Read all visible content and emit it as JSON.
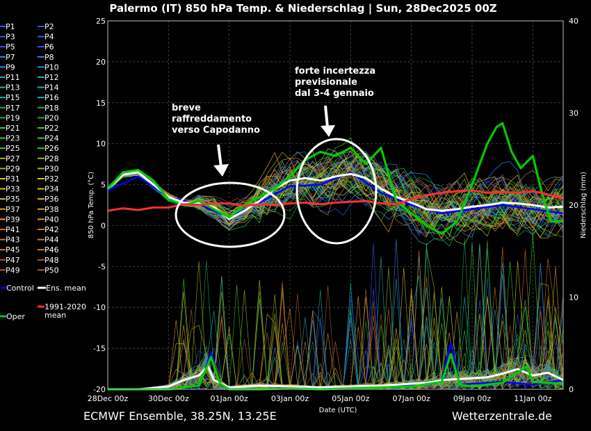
{
  "header": {
    "title": "Palermo  (IT)  850 hPa Temp. & Niederschlag | Sun, 28Dec2025 00Z"
  },
  "footer": {
    "left": "ECMWF Ensemble, 38.25N, 13.25E",
    "right": "Wetterzentrale.de"
  },
  "annotations": [
    {
      "lines": [
        "breve",
        "raffreddamento",
        "verso Capodanno"
      ]
    },
    {
      "lines": [
        "forte incertezza",
        "previsionale",
        "dal 3-4 gennaio"
      ]
    }
  ],
  "legend": {
    "members": [
      "P1",
      "P2",
      "P3",
      "P4",
      "P5",
      "P6",
      "P7",
      "P8",
      "P9",
      "P10",
      "P11",
      "P12",
      "P13",
      "P14",
      "P15",
      "P16",
      "P17",
      "P18",
      "P19",
      "P20",
      "P21",
      "P22",
      "P23",
      "P24",
      "P25",
      "P26",
      "P27",
      "P28",
      "P29",
      "P30",
      "P31",
      "P32",
      "P33",
      "P34",
      "P35",
      "P36",
      "P37",
      "P38",
      "P39",
      "P40",
      "P41",
      "P42",
      "P43",
      "P44",
      "P45",
      "P46",
      "P47",
      "P48",
      "P49",
      "P50"
    ],
    "control": "Control",
    "mean": "Ens. mean",
    "climate": [
      "1991-2020",
      "mean"
    ],
    "oper": "Oper"
  },
  "colors": {
    "member_palette": [
      "#3355ff",
      "#2b8cff",
      "#20b2aa",
      "#1fae4a",
      "#33cc33",
      "#90c020",
      "#d8c020",
      "#e0a030",
      "#d07a30",
      "#b05a30"
    ],
    "control": "#0000ff",
    "mean": "#ffffff",
    "climate": "#ff3030",
    "oper": "#00cc00",
    "grid": "#555555"
  },
  "chart_data": {
    "type": "line",
    "title": "Palermo  (IT)  850 hPa Temp. & Niederschlag | Sun, 28Dec2025 00Z",
    "xlabel": "Date (UTC)",
    "ylabel": "850 hPa Temp. (°C)",
    "y2label": "Niederschlag (mm)",
    "xlim": [
      0,
      15
    ],
    "ylim": [
      -20,
      25
    ],
    "y2lim": [
      0,
      40
    ],
    "x_ticks": [
      {
        "x": 0,
        "label": "28Dec 00z"
      },
      {
        "x": 2,
        "label": "30Dec 00z"
      },
      {
        "x": 4,
        "label": "01Jan 00z"
      },
      {
        "x": 6,
        "label": "03Jan 00z"
      },
      {
        "x": 8,
        "label": "05Jan 00z"
      },
      {
        "x": 10,
        "label": "07Jan 00z"
      },
      {
        "x": 12,
        "label": "09Jan 00z"
      },
      {
        "x": 14,
        "label": "11Jan 00z"
      }
    ],
    "y_ticks": [
      25,
      20,
      15,
      10,
      5,
      0,
      -5,
      -10,
      -15,
      -20
    ],
    "y2_ticks": [
      40,
      30,
      20,
      10,
      0
    ],
    "grid": true,
    "series": [
      {
        "name": "Ens. mean",
        "axis": "temp",
        "x": [
          0,
          0.5,
          1,
          1.5,
          2,
          2.5,
          3,
          3.5,
          4,
          4.5,
          5,
          5.5,
          6,
          6.5,
          7,
          7.5,
          8,
          8.5,
          9,
          9.5,
          10,
          10.5,
          11,
          11.5,
          12,
          12.5,
          13,
          13.5,
          14,
          14.5,
          15
        ],
        "y": [
          4.5,
          6.2,
          6.5,
          5.0,
          3.5,
          2.8,
          2.8,
          2.2,
          0.8,
          1.8,
          3.0,
          4.5,
          5.5,
          5.8,
          5.5,
          6.0,
          6.3,
          5.8,
          4.5,
          3.5,
          2.8,
          2.0,
          1.8,
          2.0,
          2.3,
          2.5,
          2.8,
          2.7,
          2.5,
          2.2,
          2.3
        ]
      },
      {
        "name": "Oper",
        "axis": "temp",
        "x": [
          0,
          0.5,
          1,
          1.5,
          2,
          2.5,
          3,
          3.5,
          4,
          4.5,
          5,
          5.5,
          6,
          6.5,
          7,
          7.5,
          8,
          8.5,
          9,
          9.5,
          10,
          10.5,
          11,
          11.5,
          12,
          12.5,
          12.8,
          13,
          13.3,
          13.6,
          14,
          14.3,
          14.6,
          15
        ],
        "y": [
          4.5,
          6.5,
          6.8,
          5.5,
          3.2,
          2.5,
          3.0,
          2.0,
          1.0,
          2.5,
          3.5,
          4.5,
          6.0,
          8.0,
          9.0,
          8.5,
          9.5,
          7.5,
          9.5,
          3.0,
          1.5,
          0,
          -1.0,
          0.5,
          5.0,
          10.0,
          12.0,
          12.5,
          9.0,
          7.0,
          8.5,
          4.0,
          0.5,
          0.5
        ]
      },
      {
        "name": "Control",
        "axis": "temp",
        "x": [
          0,
          1,
          2,
          3,
          4,
          5,
          6,
          7,
          8,
          9,
          10,
          11,
          12,
          13,
          14,
          15
        ],
        "y": [
          4.3,
          6.0,
          3.5,
          2.6,
          1.0,
          2.8,
          4.8,
          5.0,
          6.5,
          4.0,
          2.5,
          1.5,
          2.0,
          2.5,
          2.0,
          1.5
        ]
      },
      {
        "name": "1991-2020 mean",
        "axis": "temp",
        "x": [
          0,
          0.5,
          1,
          1.5,
          2,
          2.5,
          3,
          3.5,
          4,
          4.5,
          5,
          5.5,
          6,
          6.5,
          7,
          7.5,
          8,
          8.5,
          9,
          9.5,
          10,
          10.5,
          11,
          11.5,
          12,
          12.5,
          13,
          13.5,
          14,
          14.5,
          15
        ],
        "y": [
          1.8,
          2.1,
          1.9,
          2.2,
          2.2,
          2.6,
          2.5,
          2.7,
          2.7,
          2.4,
          2.6,
          2.5,
          2.7,
          2.8,
          2.6,
          2.8,
          2.9,
          3.0,
          2.7,
          2.6,
          3.2,
          3.7,
          4.0,
          4.2,
          4.3,
          4.0,
          4.1,
          4.0,
          4.2,
          3.8,
          3.3
        ]
      },
      {
        "name": "Ens. mean",
        "axis": "precip",
        "x": [
          0,
          1,
          2,
          2.5,
          3,
          3.3,
          3.5,
          4,
          5,
          6,
          7,
          8,
          9,
          10,
          10.5,
          11,
          11.5,
          12,
          12.5,
          13,
          13.5,
          14,
          14.5,
          15
        ],
        "y": [
          0,
          0,
          0.3,
          1.0,
          1.5,
          2.5,
          1.0,
          0.2,
          0.4,
          0.3,
          0.2,
          0.3,
          0.4,
          0.6,
          0.7,
          1.0,
          1.1,
          1.2,
          1.3,
          1.7,
          2.2,
          1.5,
          1.8,
          1.0
        ]
      },
      {
        "name": "Oper",
        "axis": "precip",
        "x": [
          0,
          1,
          2,
          3,
          3.4,
          3.7,
          4,
          5,
          6,
          7,
          8,
          9,
          10,
          11,
          11.3,
          11.6,
          12,
          13,
          13.8,
          14,
          15
        ],
        "y": [
          0,
          0,
          0,
          0.4,
          3.5,
          0.6,
          0,
          0,
          0.1,
          0,
          0.1,
          0.2,
          0.3,
          0.8,
          3.8,
          0.5,
          0.3,
          0.7,
          2.5,
          0.8,
          0.6
        ]
      },
      {
        "name": "Control",
        "axis": "precip",
        "x": [
          0,
          1,
          2,
          3,
          3.4,
          3.7,
          4,
          5,
          6,
          7,
          8,
          9,
          10,
          11,
          11.3,
          11.6,
          12,
          13,
          14,
          15
        ],
        "y": [
          0,
          0,
          0,
          0.3,
          4.0,
          0.5,
          0,
          0,
          0.2,
          0,
          0.1,
          0.2,
          0.5,
          1.0,
          5.0,
          0.5,
          0.6,
          0.8,
          0.5,
          1.0
        ]
      }
    ]
  }
}
